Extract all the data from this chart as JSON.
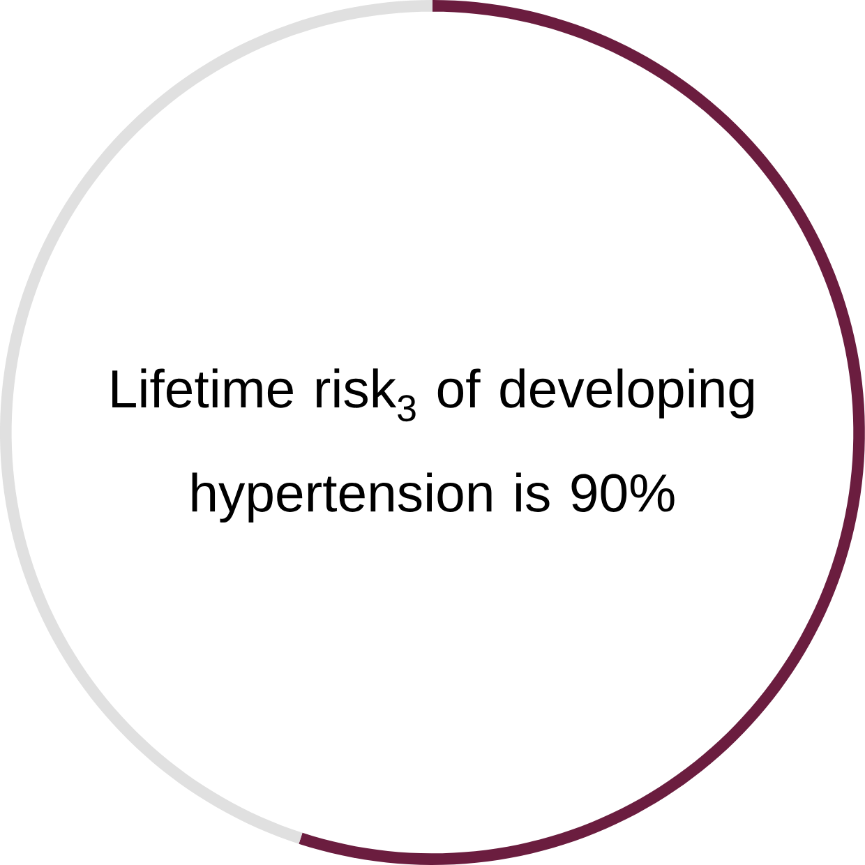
{
  "chart_data": {
    "type": "donut",
    "title": "Lifetime risk$_{3}$ of developing hypertension is 90%",
    "categories": [
      null,
      null
    ],
    "values": [
      55,
      45
    ],
    "colors": [
      "#6b1d3f",
      "#e0e0e0"
    ]
  }
}
